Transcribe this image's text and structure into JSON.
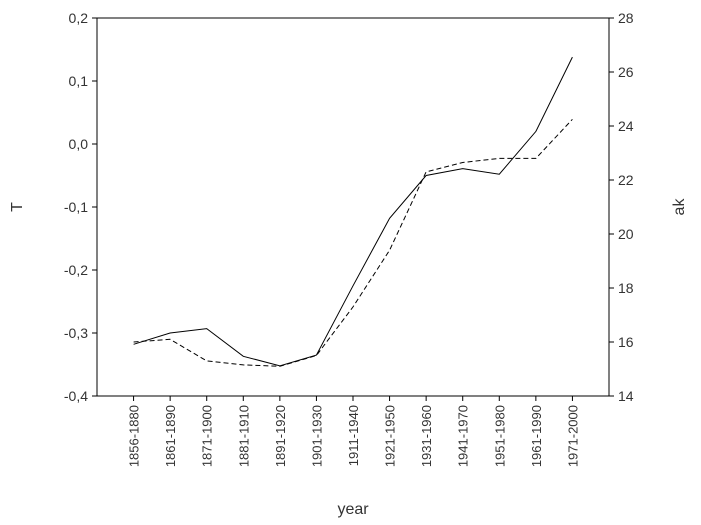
{
  "chart_data": {
    "type": "line",
    "title": "",
    "xlabel": "year",
    "ylabel_left": "T",
    "ylabel_right": "ak",
    "categories": [
      "1856-1880",
      "1861-1890",
      "1871-1900",
      "1881-1910",
      "1891-1920",
      "1901-1930",
      "1911-1940",
      "1921-1950",
      "1931-1960",
      "1941-1970",
      "1951-1980",
      "1961-1990",
      "1971-2000"
    ],
    "y_left": {
      "min": -0.4,
      "max": 0.2,
      "ticks": [
        "-0,4",
        "-0,3",
        "-0,2",
        "-0,1",
        "0,0",
        "0,1",
        "0,2"
      ]
    },
    "y_right": {
      "min": 14,
      "max": 28,
      "ticks": [
        "14",
        "16",
        "18",
        "20",
        "22",
        "24",
        "26",
        "28"
      ]
    },
    "grid": false,
    "series": [
      {
        "axis": "left",
        "line": "solid",
        "color": "#000000",
        "values": [
          -0.318,
          -0.3,
          -0.293,
          -0.337,
          -0.352,
          -0.335,
          -0.225,
          -0.118,
          -0.05,
          -0.039,
          -0.048,
          0.02,
          0.138
        ]
      },
      {
        "axis": "right",
        "line": "dashed",
        "color": "#000000",
        "values": [
          16.0,
          16.1,
          15.3,
          15.15,
          15.1,
          15.5,
          17.3,
          19.4,
          22.3,
          22.65,
          22.8,
          22.8,
          24.25
        ]
      }
    ]
  }
}
